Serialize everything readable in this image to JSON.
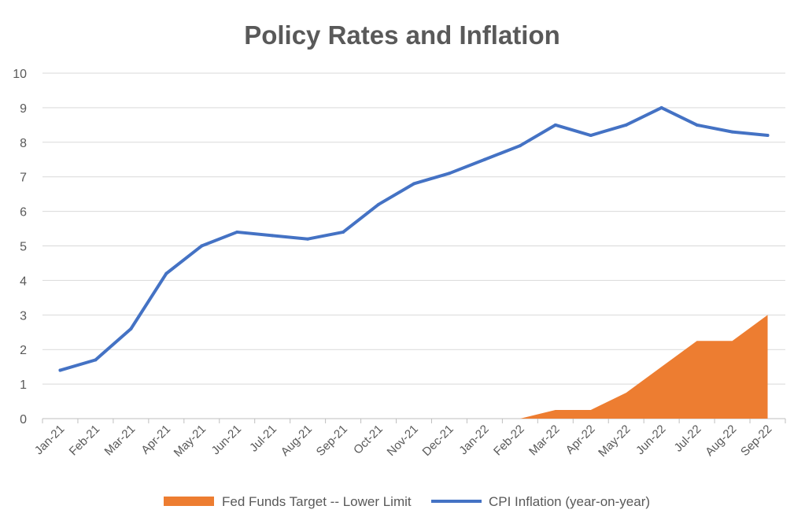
{
  "chart_data": {
    "type": "line",
    "title": "Policy Rates and Inflation",
    "xlabel": "",
    "ylabel": "",
    "ylim": [
      0,
      10
    ],
    "yticks": [
      0,
      1,
      2,
      3,
      4,
      5,
      6,
      7,
      8,
      9,
      10
    ],
    "grid": true,
    "legend_position": "bottom",
    "categories": [
      "Jan-21",
      "Feb-21",
      "Mar-21",
      "Apr-21",
      "May-21",
      "Jun-21",
      "Jul-21",
      "Aug-21",
      "Sep-21",
      "Oct-21",
      "Nov-21",
      "Dec-21",
      "Jan-22",
      "Feb-22",
      "Mar-22",
      "Apr-22",
      "May-22",
      "Jun-22",
      "Jul-22",
      "Aug-22",
      "Sep-22"
    ],
    "series": [
      {
        "name": "Fed Funds Target -- Lower Limit",
        "type": "area",
        "color": "#ED7D31",
        "values": [
          null,
          null,
          null,
          null,
          null,
          null,
          null,
          null,
          null,
          null,
          null,
          null,
          null,
          0,
          0.25,
          0.25,
          0.75,
          1.5,
          2.25,
          2.25,
          3.0
        ]
      },
      {
        "name": "CPI Inflation (year-on-year)",
        "type": "line",
        "color": "#4472C4",
        "values": [
          1.4,
          1.7,
          2.6,
          4.2,
          5.0,
          5.4,
          5.3,
          5.2,
          5.4,
          6.2,
          6.8,
          7.1,
          7.5,
          7.9,
          8.5,
          8.2,
          8.5,
          9.0,
          8.5,
          8.3,
          8.2
        ]
      }
    ]
  }
}
